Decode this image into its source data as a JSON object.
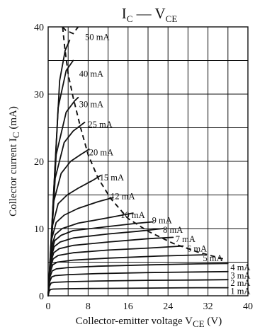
{
  "chart_data": {
    "type": "line",
    "title_main": "I",
    "title_sub1": "C",
    "title_sep": " — V",
    "title_sub2": "CE",
    "xlabel_main": "Collector-emitter voltage  V",
    "xlabel_sub": "CE",
    "xlabel_unit": "  (V)",
    "ylabel_main": "Collector current  I",
    "ylabel_sub": "C",
    "ylabel_unit": "  (mA)",
    "xlim": [
      0,
      40
    ],
    "ylim": [
      0,
      40
    ],
    "x_ticks": [
      0,
      8,
      16,
      24,
      32,
      40
    ],
    "y_ticks": [
      0,
      10,
      20,
      30,
      40
    ],
    "grid": true,
    "series": [
      {
        "name": "1 mA",
        "points": [
          [
            0,
            0
          ],
          [
            0.2,
            0.7
          ],
          [
            0.5,
            0.95
          ],
          [
            1,
            1.0
          ],
          [
            4,
            1.05
          ],
          [
            10,
            1.1
          ],
          [
            20,
            1.15
          ],
          [
            30,
            1.2
          ],
          [
            36,
            1.2
          ]
        ]
      },
      {
        "name": "2 mA",
        "points": [
          [
            0,
            0
          ],
          [
            0.25,
            1.4
          ],
          [
            0.6,
            1.9
          ],
          [
            1.2,
            2.0
          ],
          [
            4,
            2.1
          ],
          [
            10,
            2.2
          ],
          [
            20,
            2.3
          ],
          [
            30,
            2.35
          ],
          [
            36,
            2.4
          ]
        ]
      },
      {
        "name": "3 mA",
        "points": [
          [
            0,
            0
          ],
          [
            0.3,
            2.1
          ],
          [
            0.7,
            2.8
          ],
          [
            1.4,
            3.0
          ],
          [
            4,
            3.15
          ],
          [
            10,
            3.3
          ],
          [
            20,
            3.45
          ],
          [
            30,
            3.55
          ],
          [
            36,
            3.6
          ]
        ]
      },
      {
        "name": "4 mA",
        "points": [
          [
            0,
            0
          ],
          [
            0.35,
            2.8
          ],
          [
            0.8,
            3.7
          ],
          [
            1.6,
            4.0
          ],
          [
            4,
            4.2
          ],
          [
            10,
            4.4
          ],
          [
            20,
            4.6
          ],
          [
            30,
            4.75
          ],
          [
            36,
            4.8
          ]
        ]
      },
      {
        "name": "5 mA",
        "points": [
          [
            0,
            0
          ],
          [
            0.4,
            3.5
          ],
          [
            0.9,
            4.6
          ],
          [
            1.8,
            5.0
          ],
          [
            5,
            5.3
          ],
          [
            12,
            5.6
          ],
          [
            22,
            5.9
          ],
          [
            31,
            6.1
          ]
        ]
      },
      {
        "name": "6 mA",
        "points": [
          [
            0,
            0
          ],
          [
            0.45,
            4.2
          ],
          [
            1,
            5.5
          ],
          [
            2,
            6.0
          ],
          [
            5,
            6.4
          ],
          [
            12,
            6.8
          ],
          [
            20,
            7.1
          ],
          [
            27,
            7.4
          ]
        ]
      },
      {
        "name": "7 mA",
        "points": [
          [
            0,
            0
          ],
          [
            0.5,
            4.9
          ],
          [
            1.1,
            6.4
          ],
          [
            2.2,
            7.0
          ],
          [
            5,
            7.5
          ],
          [
            12,
            8.0
          ],
          [
            20,
            8.5
          ],
          [
            25,
            8.7
          ]
        ]
      },
      {
        "name": "8 mA",
        "points": [
          [
            0,
            0
          ],
          [
            0.55,
            5.6
          ],
          [
            1.2,
            7.3
          ],
          [
            2.4,
            8.0
          ],
          [
            5,
            8.6
          ],
          [
            12,
            9.2
          ],
          [
            18,
            9.6
          ],
          [
            23,
            10.0
          ]
        ]
      },
      {
        "name": "9 mA",
        "points": [
          [
            0,
            0
          ],
          [
            0.6,
            6.3
          ],
          [
            1.3,
            8.2
          ],
          [
            2.6,
            9.0
          ],
          [
            5,
            9.7
          ],
          [
            12,
            10.3
          ],
          [
            18,
            10.8
          ],
          [
            21,
            11.0
          ]
        ]
      },
      {
        "name": "10 mA",
        "points": [
          [
            0,
            0
          ],
          [
            0.6,
            7.0
          ],
          [
            1.4,
            9.1
          ],
          [
            2.8,
            10.0
          ],
          [
            6,
            10.8
          ],
          [
            12,
            11.6
          ],
          [
            17,
            12.3
          ]
        ]
      },
      {
        "name": "12 mA",
        "points": [
          [
            0,
            0
          ],
          [
            0.7,
            8.4
          ],
          [
            1.6,
            10.9
          ],
          [
            3.2,
            12.0
          ],
          [
            6,
            13.0
          ],
          [
            10,
            14.0
          ],
          [
            13,
            14.6
          ]
        ]
      },
      {
        "name": "15 mA",
        "points": [
          [
            0,
            0
          ],
          [
            0.9,
            10.5
          ],
          [
            2,
            13.7
          ],
          [
            3.8,
            15.0
          ],
          [
            6,
            16.0
          ],
          [
            9,
            17.2
          ],
          [
            10.5,
            17.9
          ]
        ]
      },
      {
        "name": "20 mA",
        "points": [
          [
            0,
            0
          ],
          [
            1.1,
            14.0
          ],
          [
            2.6,
            18.2
          ],
          [
            4.5,
            20.0
          ],
          [
            6.5,
            21.0
          ],
          [
            8.2,
            21.8
          ]
        ]
      },
      {
        "name": "25 mA",
        "points": [
          [
            0,
            0
          ],
          [
            1.4,
            17.5
          ],
          [
            3.2,
            22.8
          ],
          [
            5,
            24.5
          ],
          [
            7.3,
            25.8
          ]
        ]
      },
      {
        "name": "30 mA",
        "points": [
          [
            0,
            0
          ],
          [
            1.6,
            21.0
          ],
          [
            3.6,
            27.3
          ],
          [
            5.3,
            29.0
          ],
          [
            6.0,
            29.5
          ]
        ]
      },
      {
        "name": "40 mA",
        "points": [
          [
            0,
            0
          ],
          [
            2,
            28.0
          ],
          [
            3.6,
            33.5
          ],
          [
            5.0,
            35.0
          ]
        ]
      },
      {
        "name": "50 mA",
        "points": [
          [
            0,
            0
          ],
          [
            2.3,
            32.0
          ],
          [
            3.4,
            36.5
          ],
          [
            4.3,
            38.0
          ]
        ]
      }
    ],
    "boundary": {
      "style": "dashed",
      "points": [
        [
          2.9,
          40.0
        ],
        [
          3.3,
          37.0
        ],
        [
          4.0,
          33.0
        ],
        [
          5.0,
          29.5
        ],
        [
          6.5,
          25.0
        ],
        [
          8.0,
          21.0
        ],
        [
          10.0,
          17.5
        ],
        [
          12.5,
          14.5
        ],
        [
          16.0,
          11.5
        ],
        [
          20.0,
          9.6
        ],
        [
          25.0,
          7.8
        ],
        [
          30.0,
          6.5
        ],
        [
          35.0,
          5.5
        ]
      ]
    },
    "boundary_top_cap": [
      [
        2.9,
        40.0
      ],
      [
        3.5,
        39.5
      ],
      [
        5.0,
        39.0
      ],
      [
        6.0,
        40.0
      ]
    ],
    "annotations": [
      {
        "text": "50 mA",
        "x": 7.4,
        "y": 38.5
      },
      {
        "text": "40 mA",
        "x": 6.2,
        "y": 33.0
      },
      {
        "text": "30 mA",
        "x": 6.2,
        "y": 28.5
      },
      {
        "text": "25 mA",
        "x": 8.0,
        "y": 25.5
      },
      {
        "text": "20 mA",
        "x": 8.2,
        "y": 21.3
      },
      {
        "text": "15 mA",
        "x": 10.3,
        "y": 17.6
      },
      {
        "text": "12 mA",
        "x": 12.5,
        "y": 14.8
      },
      {
        "text": "10 mA",
        "x": 14.5,
        "y": 12.0
      },
      {
        "text": "9 mA",
        "x": 20.8,
        "y": 11.2
      },
      {
        "text": "8 mA",
        "x": 23.0,
        "y": 9.8
      },
      {
        "text": "7 mA",
        "x": 25.5,
        "y": 8.4
      },
      {
        "text": "6 mA",
        "x": 27.8,
        "y": 7.0
      },
      {
        "text": "5 mA",
        "x": 31.0,
        "y": 5.6
      },
      {
        "text": "4 mA",
        "x": 36.5,
        "y": 4.2
      },
      {
        "text": "3 mA",
        "x": 36.5,
        "y": 3.0
      },
      {
        "text": "2 mA",
        "x": 36.5,
        "y": 1.9
      },
      {
        "text": "1 mA",
        "x": 36.5,
        "y": 0.7
      }
    ]
  }
}
